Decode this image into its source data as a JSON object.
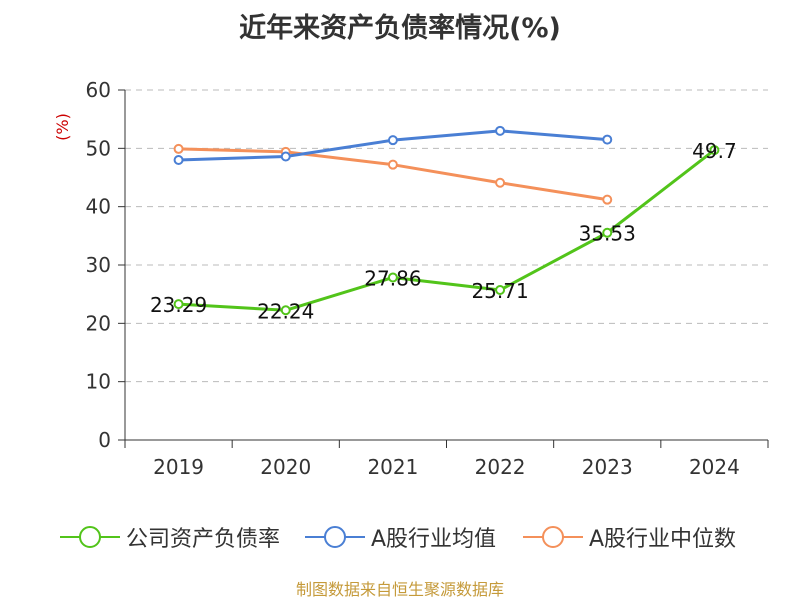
{
  "chart_data": {
    "type": "line",
    "title": "近年来资产负债率情况(%)",
    "ylabel": "(%)",
    "xlabel": "",
    "categories": [
      "2019",
      "2020",
      "2021",
      "2022",
      "2023",
      "2024"
    ],
    "ylim": [
      0,
      60
    ],
    "yticks": [
      0,
      10,
      20,
      30,
      40,
      50,
      60
    ],
    "grid": true,
    "legend_position": "bottom",
    "series": [
      {
        "name": "公司资产负债率",
        "color": "#52c41a",
        "values": [
          23.29,
          22.24,
          27.86,
          25.71,
          35.53,
          49.7
        ],
        "labels": [
          "23.29",
          "22.24",
          "27.86",
          "25.71",
          "35.53",
          "49.7"
        ]
      },
      {
        "name": "A股行业均值",
        "color": "#4a7fd4",
        "values": [
          48.0,
          48.6,
          51.4,
          53.0,
          51.5,
          null
        ]
      },
      {
        "name": "A股行业中位数",
        "color": "#f4905a",
        "values": [
          49.9,
          49.4,
          47.2,
          44.1,
          41.2,
          null
        ]
      }
    ]
  },
  "footer": {
    "source": "制图数据来自恒生聚源数据库"
  },
  "colors": {
    "axis": "#333333",
    "grid": "#bbbbbb",
    "ylabel": "#cc0000",
    "footer": "#c59a3a"
  }
}
